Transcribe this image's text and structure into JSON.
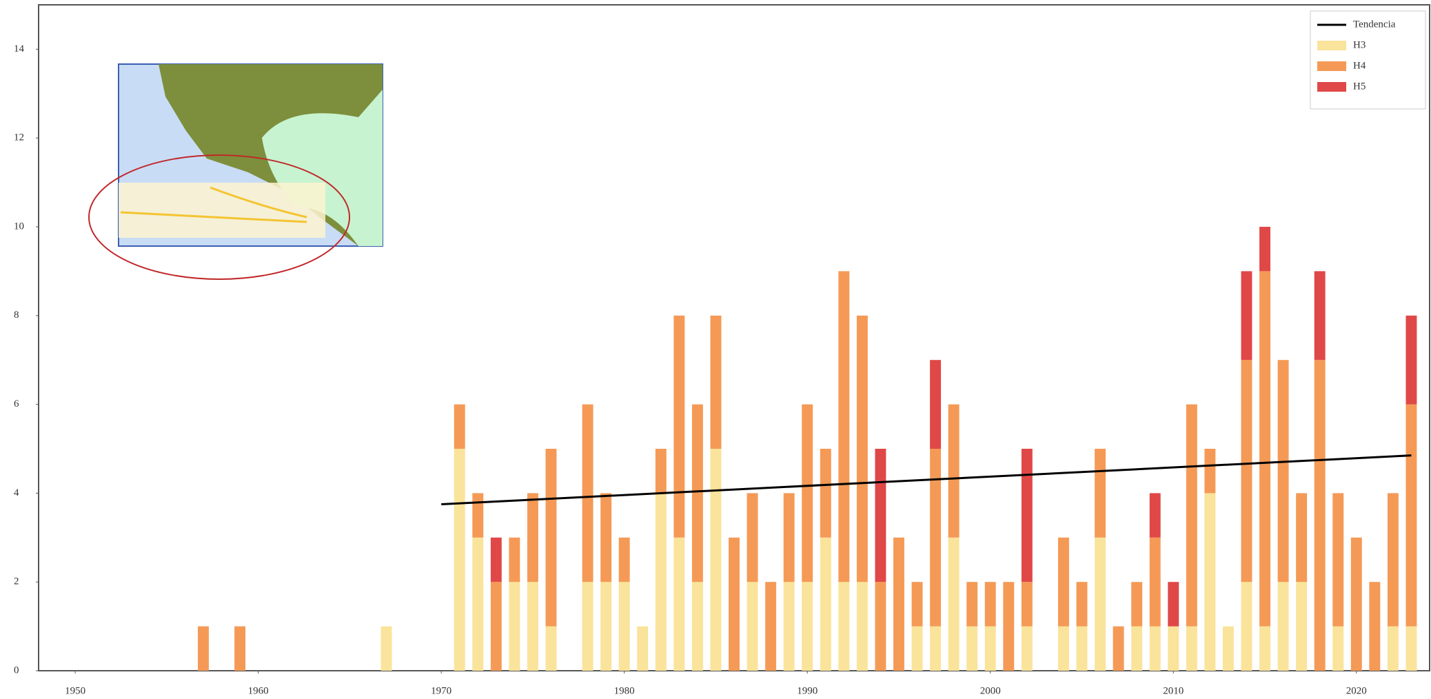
{
  "chart_data": {
    "type": "bar",
    "stacked": true,
    "x": [
      1957,
      1959,
      1967,
      1971,
      1972,
      1973,
      1974,
      1975,
      1976,
      1978,
      1979,
      1980,
      1981,
      1982,
      1983,
      1984,
      1985,
      1986,
      1987,
      1988,
      1989,
      1990,
      1991,
      1992,
      1993,
      1994,
      1995,
      1996,
      1997,
      1998,
      1999,
      2000,
      2001,
      2002,
      2004,
      2005,
      2006,
      2007,
      2008,
      2009,
      2010,
      2011,
      2012,
      2013,
      2014,
      2015,
      2016,
      2017,
      2018,
      2019,
      2020,
      2021,
      2022,
      2023
    ],
    "series": [
      {
        "name": "H3",
        "color": "#fae39a",
        "values": [
          0,
          0,
          1,
          5,
          3,
          0,
          2,
          2,
          1,
          2,
          2,
          2,
          1,
          4,
          3,
          2,
          5,
          0,
          2,
          0,
          2,
          2,
          3,
          2,
          2,
          0,
          0,
          1,
          1,
          3,
          1,
          1,
          0,
          1,
          1,
          1,
          3,
          0,
          1,
          1,
          1,
          1,
          4,
          1,
          2,
          1,
          2,
          2,
          0,
          1,
          0,
          0,
          1,
          1
        ]
      },
      {
        "name": "H4",
        "color": "#f49a56",
        "values": [
          1,
          1,
          0,
          1,
          1,
          2,
          1,
          2,
          4,
          4,
          2,
          1,
          0,
          1,
          5,
          4,
          3,
          3,
          2,
          2,
          2,
          4,
          2,
          7,
          6,
          2,
          3,
          1,
          4,
          3,
          1,
          1,
          2,
          1,
          2,
          1,
          2,
          1,
          1,
          2,
          0,
          5,
          1,
          0,
          5,
          8,
          5,
          2,
          7,
          3,
          3,
          2,
          3,
          5
        ]
      },
      {
        "name": "H5",
        "color": "#e04848",
        "values": [
          0,
          0,
          0,
          0,
          0,
          1,
          0,
          0,
          0,
          0,
          0,
          0,
          0,
          0,
          0,
          0,
          0,
          0,
          0,
          0,
          0,
          0,
          0,
          0,
          0,
          3,
          0,
          0,
          2,
          0,
          0,
          0,
          0,
          3,
          0,
          0,
          0,
          0,
          0,
          1,
          1,
          0,
          0,
          0,
          2,
          1,
          0,
          0,
          2,
          0,
          0,
          0,
          0,
          2
        ]
      },
      {
        "name": "Tendencia",
        "type": "line",
        "color": "#000000",
        "x": [
          1970,
          2023
        ],
        "values": [
          3.75,
          4.85
        ]
      }
    ],
    "xlim": [
      1948,
      2024
    ],
    "xticks": [
      1950,
      1960,
      1970,
      1980,
      1990,
      2000,
      2010,
      2020
    ],
    "ylim": [
      0,
      15
    ],
    "yticks": [
      0,
      2,
      4,
      6,
      8,
      10,
      12,
      14
    ],
    "legend": "upper right"
  }
}
